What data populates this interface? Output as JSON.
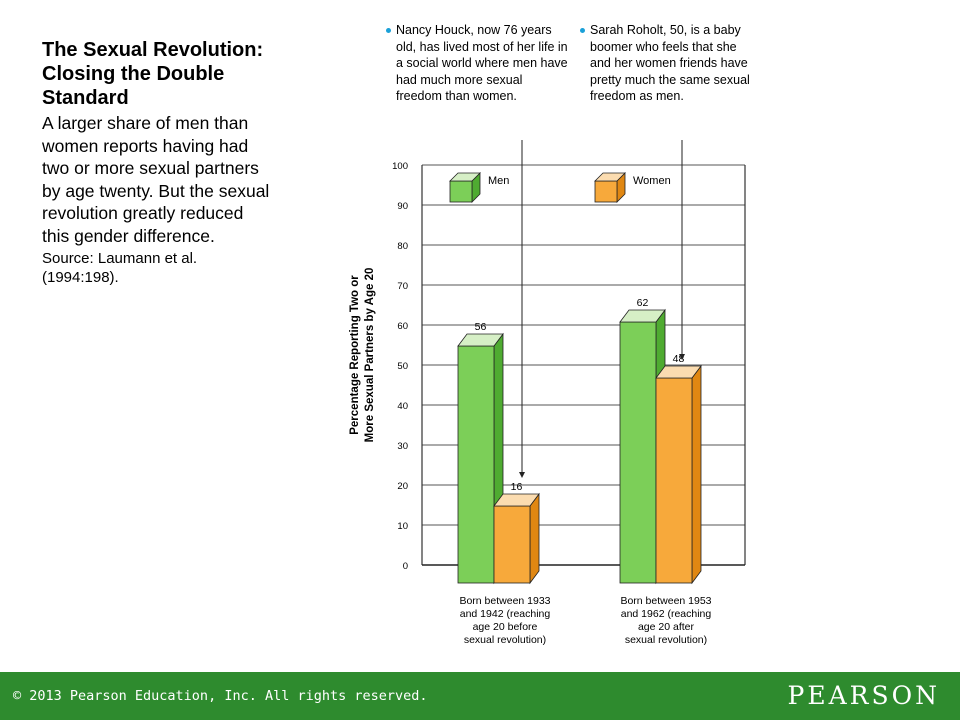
{
  "left_panel": {
    "title": "The Sexual Revolution: Closing the Double Standard",
    "description": "A larger share of men than women reports having had two or more sexual partners by age twenty. But the sexual revolution greatly reduced this gender difference.",
    "source": "Source: Laumann et al. (1994:198)."
  },
  "notes": [
    "Nancy Houck, now 76 years old, has lived most of her life in a social world where men have had much more sexual freedom than women.",
    "Sarah Roholt, 50, is a baby boomer who feels that she and her women friends have pretty much the same sexual freedom as men."
  ],
  "chart_data": {
    "type": "bar",
    "ylabel_lines": [
      "Percentage Reporting Two or",
      "More Sexual Partners by Age 20"
    ],
    "ylim": [
      0,
      100
    ],
    "yticks": [
      0,
      10,
      20,
      30,
      40,
      50,
      60,
      70,
      80,
      90,
      100
    ],
    "category_lines": [
      [
        "Born between 1933",
        "and 1942 (reaching",
        "age 20 before",
        "sexual revolution)"
      ],
      [
        "Born between 1953",
        "and 1962 (reaching",
        "age 20 after",
        "sexual revolution)"
      ]
    ],
    "series": [
      {
        "name": "Men",
        "values": [
          56,
          62
        ],
        "color": "#7ccf58",
        "top_color": "#d6efc6",
        "side_color": "#4fab31"
      },
      {
        "name": "Women",
        "values": [
          16,
          48
        ],
        "color": "#f7a93b",
        "top_color": "#fbdcb0",
        "side_color": "#e08712"
      }
    ],
    "grid": true,
    "legend_position": "top"
  },
  "footer": {
    "copyright": "© 2013 Pearson Education, Inc. All rights reserved.",
    "brand": "PEARSON",
    "color": "#2e8b2e"
  }
}
